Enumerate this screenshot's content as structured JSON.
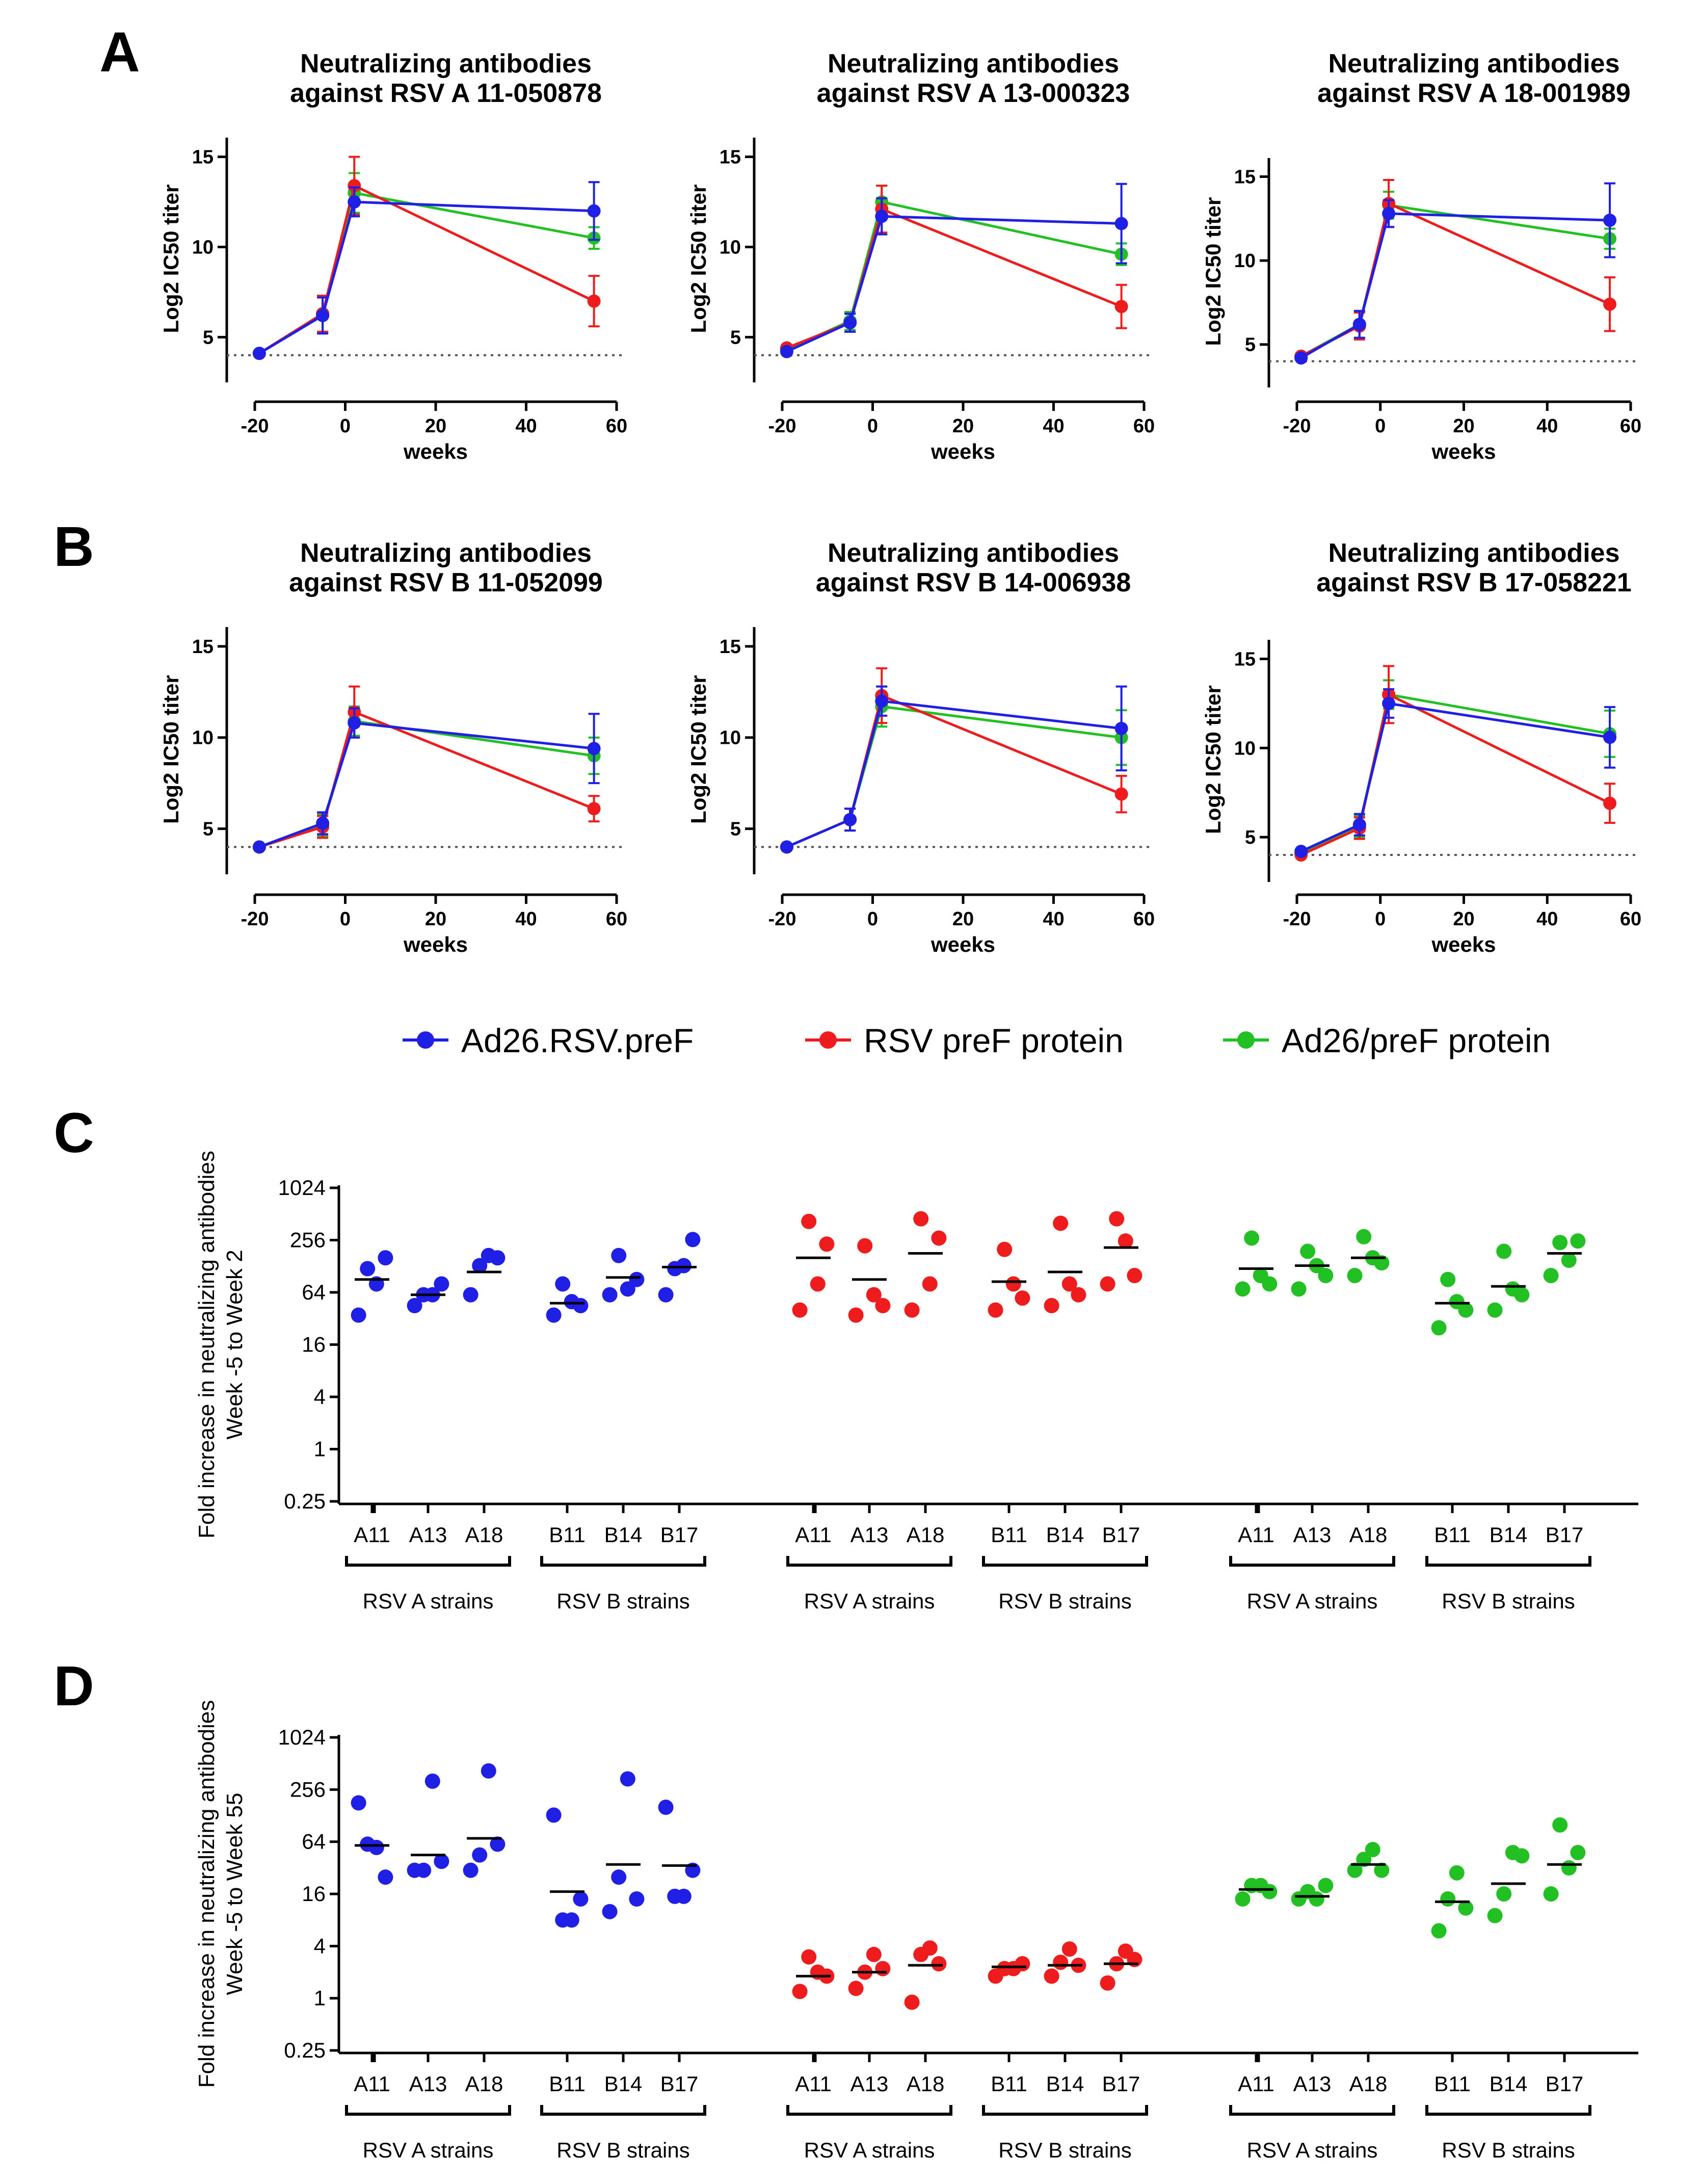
{
  "panel_letters": [
    "A",
    "B",
    "C",
    "D"
  ],
  "legend": {
    "items": [
      {
        "label": "Ad26.RSV.preF",
        "color": "#1f1fe6"
      },
      {
        "label": "RSV preF protein",
        "color": "#ee1c1c"
      },
      {
        "label": "Ad26/preF protein",
        "color": "#22c022"
      }
    ]
  },
  "chart_data": [
    {
      "panel": "A",
      "type": "line",
      "title_lines": [
        "Neutralizing antibodies",
        "against RSV A 11-050878"
      ],
      "xlabel": "weeks",
      "ylabel": "Log2 IC50 titer",
      "xlim": [
        -20,
        60
      ],
      "ylim": [
        3.2,
        15.5
      ],
      "xticks": [
        "-20",
        "0",
        "20",
        "40",
        "60"
      ],
      "yticks": [
        "5",
        "10",
        "15"
      ],
      "baseline": 4.0,
      "x": [
        -19,
        -5,
        2,
        55
      ],
      "series": [
        {
          "name": "Ad26.RSV.preF",
          "values": [
            4.1,
            6.2,
            12.5,
            12.0
          ],
          "err": [
            0.1,
            1.0,
            0.8,
            1.6
          ]
        },
        {
          "name": "RSV preF protein",
          "values": [
            4.1,
            6.3,
            13.4,
            7.0
          ],
          "err": [
            0.1,
            1.0,
            1.6,
            1.4
          ]
        },
        {
          "name": "Ad26/preF protein",
          "values": [
            4.1,
            6.3,
            13.0,
            10.5
          ],
          "err": [
            0.1,
            1.0,
            1.1,
            0.6
          ]
        }
      ]
    },
    {
      "panel": "A",
      "type": "line",
      "title_lines": [
        "Neutralizing antibodies",
        "against RSV A 13-000323"
      ],
      "xlabel": "weeks",
      "ylabel": "Log2 IC50 titer",
      "xlim": [
        -20,
        60
      ],
      "ylim": [
        3.2,
        15.5
      ],
      "xticks": [
        "-20",
        "0",
        "20",
        "40",
        "60"
      ],
      "yticks": [
        "5",
        "10",
        "15"
      ],
      "baseline": 4.0,
      "x": [
        -19,
        -5,
        2,
        55
      ],
      "series": [
        {
          "name": "Ad26.RSV.preF",
          "values": [
            4.2,
            5.8,
            11.7,
            11.3
          ],
          "err": [
            0.1,
            0.5,
            1.0,
            2.2
          ]
        },
        {
          "name": "RSV preF protein",
          "values": [
            4.4,
            5.8,
            12.1,
            6.7
          ],
          "err": [
            0.1,
            0.5,
            1.3,
            1.2
          ]
        },
        {
          "name": "Ad26/preF protein",
          "values": [
            4.3,
            5.9,
            12.5,
            9.6
          ],
          "err": [
            0.1,
            0.5,
            0.9,
            0.6
          ]
        }
      ]
    },
    {
      "panel": "A",
      "type": "line",
      "title_lines": [
        "Neutralizing antibodies",
        "against RSV A 18-001989"
      ],
      "xlabel": "weeks",
      "ylabel": "Log2 IC50 titer",
      "xlim": [
        -20,
        60
      ],
      "ylim": [
        3.2,
        15.5
      ],
      "xticks": [
        "-20",
        "0",
        "20",
        "40",
        "60"
      ],
      "yticks": [
        "5",
        "10",
        "15"
      ],
      "baseline": 4.0,
      "x": [
        -19,
        -5,
        2,
        55
      ],
      "series": [
        {
          "name": "Ad26.RSV.preF",
          "values": [
            4.2,
            6.2,
            12.8,
            12.4
          ],
          "err": [
            0.1,
            0.8,
            0.8,
            2.2
          ]
        },
        {
          "name": "RSV preF protein",
          "values": [
            4.3,
            6.1,
            13.4,
            7.4
          ],
          "err": [
            0.1,
            0.8,
            1.4,
            1.6
          ]
        },
        {
          "name": "Ad26/preF protein",
          "values": [
            4.3,
            6.2,
            13.3,
            11.3
          ],
          "err": [
            0.1,
            0.8,
            0.8,
            0.6
          ]
        }
      ]
    },
    {
      "panel": "B",
      "type": "line",
      "title_lines": [
        "Neutralizing antibodies",
        "against RSV B 11-052099"
      ],
      "xlabel": "weeks",
      "ylabel": "Log2 IC50 titer",
      "xlim": [
        -20,
        60
      ],
      "ylim": [
        3.2,
        15.5
      ],
      "xticks": [
        "-20",
        "0",
        "20",
        "40",
        "60"
      ],
      "yticks": [
        "5",
        "10",
        "15"
      ],
      "baseline": 4.0,
      "x": [
        -19,
        -5,
        2,
        55
      ],
      "series": [
        {
          "name": "Ad26.RSV.preF",
          "values": [
            4.0,
            5.3,
            10.8,
            9.4
          ],
          "err": [
            0.1,
            0.6,
            0.8,
            1.9
          ]
        },
        {
          "name": "RSV preF protein",
          "values": [
            4.0,
            5.1,
            11.4,
            6.1
          ],
          "err": [
            0.1,
            0.6,
            1.4,
            0.7
          ]
        },
        {
          "name": "Ad26/preF protein",
          "values": [
            4.0,
            5.2,
            10.9,
            9.0
          ],
          "err": [
            0.1,
            0.6,
            0.8,
            1.0
          ]
        }
      ]
    },
    {
      "panel": "B",
      "type": "line",
      "title_lines": [
        "Neutralizing antibodies",
        "against RSV B 14-006938"
      ],
      "xlabel": "weeks",
      "ylabel": "Log2 IC50 titer",
      "xlim": [
        -20,
        60
      ],
      "ylim": [
        3.2,
        15.5
      ],
      "xticks": [
        "-20",
        "0",
        "20",
        "40",
        "60"
      ],
      "yticks": [
        "5",
        "10",
        "15"
      ],
      "baseline": 4.0,
      "x": [
        -19,
        -5,
        2,
        55
      ],
      "series": [
        {
          "name": "Ad26.RSV.preF",
          "values": [
            4.0,
            5.5,
            12.0,
            10.5
          ],
          "err": [
            0.1,
            0.6,
            0.8,
            2.3
          ]
        },
        {
          "name": "RSV preF protein",
          "values": [
            4.0,
            5.5,
            12.3,
            6.9
          ],
          "err": [
            0.1,
            0.6,
            1.5,
            1.0
          ]
        },
        {
          "name": "Ad26/preF protein",
          "values": [
            4.0,
            5.5,
            11.7,
            10.0
          ],
          "err": [
            0.1,
            0.6,
            1.1,
            1.5
          ]
        }
      ]
    },
    {
      "panel": "B",
      "type": "line",
      "title_lines": [
        "Neutralizing antibodies",
        "against RSV B 17-058221"
      ],
      "xlabel": "weeks",
      "ylabel": "Log2 IC50 titer",
      "xlim": [
        -20,
        60
      ],
      "ylim": [
        3.2,
        15.5
      ],
      "xticks": [
        "-20",
        "0",
        "20",
        "40",
        "60"
      ],
      "yticks": [
        "5",
        "10",
        "15"
      ],
      "baseline": 4.0,
      "x": [
        -19,
        -5,
        2,
        55
      ],
      "series": [
        {
          "name": "Ad26.RSV.preF",
          "values": [
            4.2,
            5.7,
            12.5,
            10.6
          ],
          "err": [
            0.1,
            0.6,
            0.8,
            1.7
          ]
        },
        {
          "name": "RSV preF protein",
          "values": [
            4.0,
            5.5,
            13.0,
            6.9
          ],
          "err": [
            0.1,
            0.6,
            1.6,
            1.1
          ]
        },
        {
          "name": "Ad26/preF protein",
          "values": [
            4.1,
            5.6,
            13.0,
            10.8
          ],
          "err": [
            0.1,
            0.6,
            0.8,
            1.3
          ]
        }
      ]
    },
    {
      "panel": "C",
      "type": "scatter",
      "ylabel_lines": [
        "Fold increase in neutralizing antibodies",
        "Week -5 to Week 2"
      ],
      "yscale": "log2",
      "ylim": [
        0.25,
        1024
      ],
      "yticks": [
        "0.25",
        "1",
        "4",
        "16",
        "64",
        "256",
        "1024"
      ],
      "categories": [
        "A11",
        "A13",
        "A18",
        "B11",
        "B14",
        "B17"
      ],
      "strain_groups": [
        "RSV A strains",
        "RSV B strains"
      ],
      "groups": [
        {
          "name": "Ad26.RSV.preF",
          "points": [
            [
              35,
              120,
              80,
              160
            ],
            [
              45,
              60,
              60,
              80
            ],
            [
              60,
              130,
              170,
              160
            ],
            [
              35,
              80,
              50,
              45
            ],
            [
              60,
              170,
              70,
              90
            ],
            [
              60,
              120,
              130,
              260
            ]
          ],
          "means": [
            90,
            60,
            110,
            48,
            95,
            125
          ]
        },
        {
          "name": "RSV preF protein",
          "points": [
            [
              40,
              420,
              80,
              230
            ],
            [
              35,
              220,
              60,
              45
            ],
            [
              40,
              450,
              80,
              270
            ],
            [
              40,
              200,
              80,
              55
            ],
            [
              45,
              400,
              80,
              60
            ],
            [
              80,
              450,
              250,
              100
            ]
          ],
          "means": [
            160,
            90,
            180,
            85,
            110,
            210
          ]
        },
        {
          "name": "Ad26/preF protein",
          "points": [
            [
              70,
              270,
              100,
              80
            ],
            [
              70,
              190,
              130,
              100
            ],
            [
              100,
              280,
              160,
              140
            ],
            [
              25,
              90,
              50,
              40
            ],
            [
              40,
              190,
              70,
              60
            ],
            [
              100,
              240,
              150,
              250
            ]
          ],
          "means": [
            120,
            130,
            160,
            48,
            75,
            180
          ]
        }
      ]
    },
    {
      "panel": "D",
      "type": "scatter",
      "ylabel_lines": [
        "Fold increase in neutralizing antibodies",
        "Week -5 to Week 55"
      ],
      "yscale": "log2",
      "ylim": [
        0.25,
        1024
      ],
      "yticks": [
        "0.25",
        "1",
        "4",
        "16",
        "64",
        "256",
        "1024"
      ],
      "categories": [
        "A11",
        "A13",
        "A18",
        "B11",
        "B14",
        "B17"
      ],
      "strain_groups": [
        "RSV A strains",
        "RSV B strains"
      ],
      "groups": [
        {
          "name": "Ad26.RSV.preF",
          "points": [
            [
              180,
              60,
              55,
              25
            ],
            [
              30,
              30,
              320,
              38
            ],
            [
              30,
              45,
              420,
              60
            ],
            [
              130,
              8,
              8,
              14
            ],
            [
              10,
              25,
              340,
              14
            ],
            [
              160,
              15,
              15,
              30
            ]
          ],
          "means": [
            58,
            45,
            70,
            17,
            35,
            34
          ]
        },
        {
          "name": "RSV preF protein",
          "points": [
            [
              1.2,
              3.0,
              2.0,
              1.8
            ],
            [
              1.3,
              2.0,
              3.2,
              2.2
            ],
            [
              0.9,
              3.2,
              3.8,
              2.5
            ],
            [
              1.8,
              2.2,
              2.2,
              2.5
            ],
            [
              1.8,
              2.6,
              3.7,
              2.4
            ],
            [
              1.5,
              2.5,
              3.5,
              2.8
            ]
          ],
          "means": [
            1.8,
            2.0,
            2.4,
            2.3,
            2.4,
            2.5
          ]
        },
        {
          "name": "Ad26/preF protein",
          "points": [
            [
              14,
              20,
              20,
              17
            ],
            [
              14,
              17,
              14,
              20
            ],
            [
              30,
              40,
              52,
              30
            ],
            [
              6,
              14,
              28,
              11
            ],
            [
              9,
              16,
              48,
              44
            ],
            [
              16,
              100,
              32,
              48
            ]
          ],
          "means": [
            18,
            15,
            35,
            13,
            21,
            35
          ]
        }
      ]
    }
  ]
}
